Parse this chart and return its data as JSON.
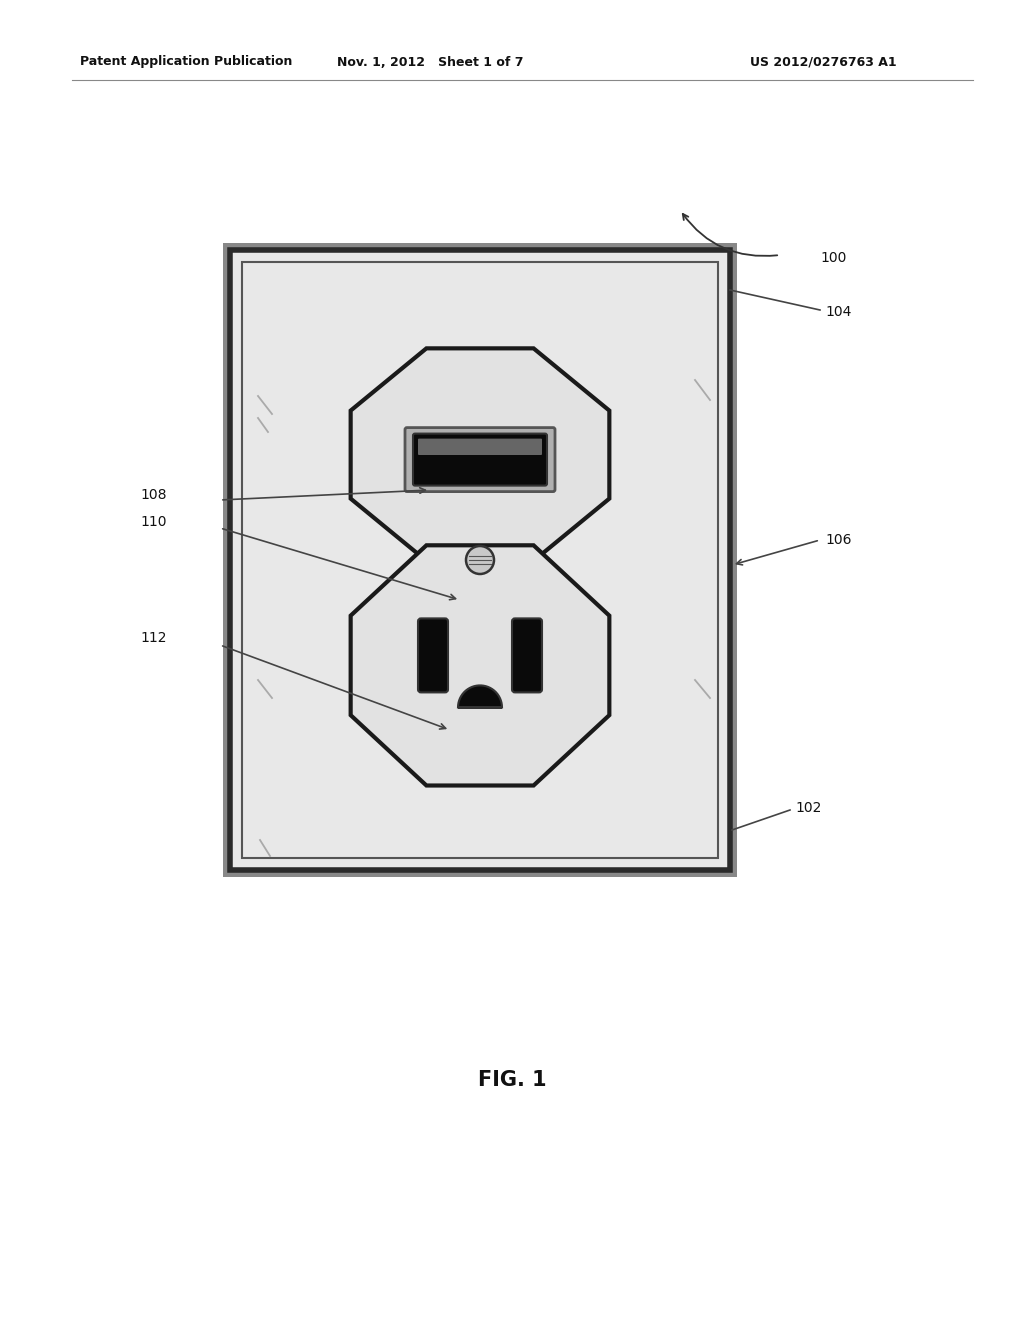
{
  "bg_color": "#ffffff",
  "header_left": "Patent Application Publication",
  "header_mid": "Nov. 1, 2012   Sheet 1 of 7",
  "header_right": "US 2012/0276763 A1",
  "fig_label": "FIG. 1",
  "plate_color": "#e0e0e0",
  "plate_inner_color": "#f0f0f0",
  "outlet_fill": "#d8d8d8",
  "outlet_edge": "#1a1a1a",
  "slot_fill": "#111111",
  "screw_fill": "#cccccc"
}
